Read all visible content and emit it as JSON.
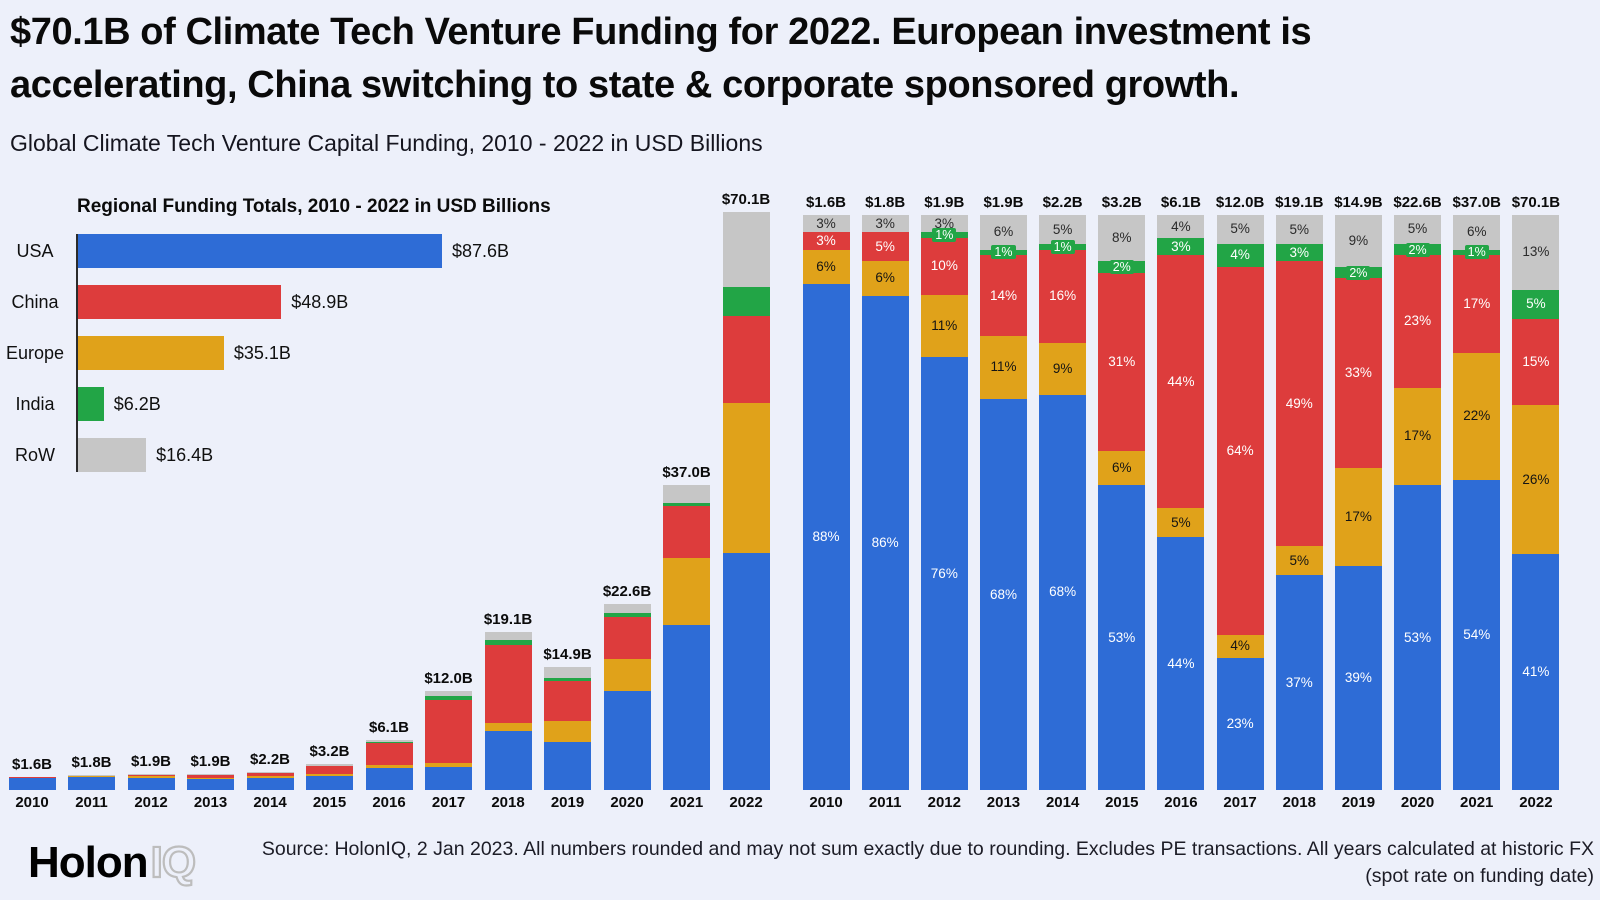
{
  "page": {
    "background": "#edf0fa",
    "text_color": "#0b0b0b"
  },
  "header": {
    "title_line1": "$70.1B of Climate Tech Venture Funding for 2022. European investment is",
    "title_line2": "accelerating, China switching to state & corporate sponsored growth.",
    "subtitle": "Global Climate Tech Venture Capital Funding, 2010 - 2022 in USD Billions"
  },
  "colors": {
    "USA": "#2e6cd6",
    "China": "#dd3c3c",
    "Europe": "#e0a21a",
    "India": "#22a546",
    "RoW": "#c6c6c6"
  },
  "segment_text_colors": {
    "USA": "#ffffff",
    "China": "#ffffff",
    "Europe": "#141414",
    "India": "#ffffff",
    "RoW": "#2a2a2a"
  },
  "chart_data": [
    {
      "id": "regional-funding-totals",
      "type": "bar",
      "orientation": "horizontal",
      "title": "Regional Funding Totals, 2010 - 2022 in USD Billions",
      "categories": [
        "USA",
        "China",
        "Europe",
        "India",
        "RoW"
      ],
      "values": [
        87.6,
        48.9,
        35.1,
        6.2,
        16.4
      ],
      "value_labels": [
        "$87.6B",
        "$48.9B",
        "$35.1B",
        "$6.2B",
        "$16.4B"
      ],
      "xlim": [
        0,
        90
      ],
      "unit": "USD Billions"
    },
    {
      "id": "funding-by-year-absolute",
      "type": "bar",
      "stacked": true,
      "categories": [
        "2010",
        "2011",
        "2012",
        "2013",
        "2014",
        "2015",
        "2016",
        "2017",
        "2018",
        "2019",
        "2020",
        "2021",
        "2022"
      ],
      "totals": [
        1.6,
        1.8,
        1.9,
        1.9,
        2.2,
        3.2,
        6.1,
        12.0,
        19.1,
        14.9,
        22.6,
        37.0,
        70.1
      ],
      "total_labels": [
        "$1.6B",
        "$1.8B",
        "$1.9B",
        "$1.9B",
        "$2.2B",
        "$3.2B",
        "$6.1B",
        "$12.0B",
        "$19.1B",
        "$14.9B",
        "$22.6B",
        "$37.0B",
        "$70.1B"
      ],
      "ylim": [
        0,
        73
      ],
      "unit": "USD Billions",
      "stack_order_bottom_to_top": [
        "USA",
        "Europe",
        "China",
        "India",
        "RoW"
      ],
      "series": [
        {
          "name": "USA",
          "pct": [
            88,
            86,
            76,
            68,
            68,
            53,
            44,
            23,
            37,
            39,
            53,
            54,
            41
          ]
        },
        {
          "name": "Europe",
          "pct": [
            6,
            6,
            11,
            11,
            9,
            6,
            5,
            4,
            5,
            17,
            17,
            22,
            26
          ]
        },
        {
          "name": "China",
          "pct": [
            3,
            5,
            10,
            14,
            16,
            31,
            44,
            64,
            49,
            33,
            23,
            17,
            15
          ]
        },
        {
          "name": "India",
          "pct": [
            0,
            0,
            1,
            1,
            1,
            2,
            3,
            4,
            3,
            2,
            2,
            1,
            5
          ]
        },
        {
          "name": "RoW",
          "pct": [
            3,
            3,
            3,
            6,
            5,
            8,
            4,
            5,
            5,
            9,
            5,
            6,
            13
          ]
        }
      ]
    },
    {
      "id": "funding-share-by-year-percent",
      "type": "bar",
      "stacked": true,
      "percent": true,
      "categories": [
        "2010",
        "2011",
        "2012",
        "2013",
        "2014",
        "2015",
        "2016",
        "2017",
        "2018",
        "2019",
        "2020",
        "2021",
        "2022"
      ],
      "total_labels": [
        "$1.6B",
        "$1.8B",
        "$1.9B",
        "$1.9B",
        "$2.2B",
        "$3.2B",
        "$6.1B",
        "$12.0B",
        "$19.1B",
        "$14.9B",
        "$22.6B",
        "$37.0B",
        "$70.1B"
      ],
      "segment_label_format": "{pct}%",
      "stack_order_bottom_to_top": [
        "USA",
        "Europe",
        "China",
        "India",
        "RoW"
      ],
      "series": [
        {
          "name": "USA",
          "pct": [
            88,
            86,
            76,
            68,
            68,
            53,
            44,
            23,
            37,
            39,
            53,
            54,
            41
          ]
        },
        {
          "name": "Europe",
          "pct": [
            6,
            6,
            11,
            11,
            9,
            6,
            5,
            4,
            5,
            17,
            17,
            22,
            26
          ]
        },
        {
          "name": "China",
          "pct": [
            3,
            5,
            10,
            14,
            16,
            31,
            44,
            64,
            49,
            33,
            23,
            17,
            15
          ]
        },
        {
          "name": "India",
          "pct": [
            0,
            0,
            1,
            1,
            1,
            2,
            3,
            4,
            3,
            2,
            2,
            1,
            5
          ]
        },
        {
          "name": "RoW",
          "pct": [
            3,
            3,
            3,
            6,
            5,
            8,
            4,
            5,
            5,
            9,
            5,
            6,
            13
          ]
        }
      ]
    }
  ],
  "footer": {
    "logo_part1": "Holon",
    "logo_part2": "IQ",
    "source": "Source: HolonIQ, 2 Jan 2023. All numbers rounded and may not sum exactly due to rounding. Excludes PE transactions. All years calculated at historic FX (spot rate on funding date)"
  }
}
